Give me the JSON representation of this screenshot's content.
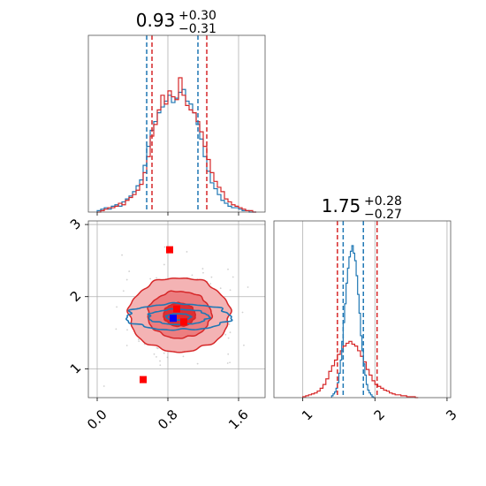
{
  "colors": {
    "red": "#d62728",
    "blue": "#1f77b4",
    "red_fill_light": "#f4b3b4",
    "red_fill_mid": "#ec7e80",
    "red_fill_dark": "#dd2f33",
    "marker_red": "#ff0000",
    "marker_blue": "#0000ff",
    "grid": "#b0b0b0"
  },
  "chart_data": [
    {
      "type": "histogram",
      "panel": "top-left",
      "title": {
        "value": "0.93",
        "sup": "+0.30",
        "sub": "−0.31"
      },
      "xlim": [
        -0.1,
        1.9
      ],
      "quantile_lines": {
        "blue": [
          0.56,
          1.14
        ],
        "red": [
          0.62,
          1.24
        ]
      },
      "bins": [
        0.0,
        0.04,
        0.08,
        0.12,
        0.16,
        0.2,
        0.24,
        0.28,
        0.32,
        0.36,
        0.4,
        0.44,
        0.48,
        0.52,
        0.56,
        0.6,
        0.64,
        0.68,
        0.72,
        0.76,
        0.8,
        0.84,
        0.88,
        0.92,
        0.96,
        1.0,
        1.04,
        1.08,
        1.12,
        1.16,
        1.2,
        1.24,
        1.28,
        1.32,
        1.36,
        1.4,
        1.44,
        1.48,
        1.52,
        1.56,
        1.6,
        1.64,
        1.68,
        1.72,
        1.76,
        1.8
      ],
      "series": [
        {
          "color": "blue",
          "values": [
            0.01,
            0.02,
            0.03,
            0.02,
            0.04,
            0.05,
            0.04,
            0.07,
            0.09,
            0.11,
            0.14,
            0.18,
            0.22,
            0.32,
            0.45,
            0.56,
            0.62,
            0.68,
            0.72,
            0.76,
            0.8,
            0.75,
            0.78,
            0.82,
            0.84,
            0.76,
            0.74,
            0.68,
            0.6,
            0.5,
            0.38,
            0.28,
            0.2,
            0.16,
            0.12,
            0.08,
            0.06,
            0.04,
            0.03,
            0.03,
            0.02,
            0.01,
            0.01,
            0.0,
            0.0
          ]
        },
        {
          "color": "red",
          "values": [
            0.0,
            0.01,
            0.02,
            0.03,
            0.03,
            0.04,
            0.06,
            0.05,
            0.08,
            0.1,
            0.12,
            0.15,
            0.19,
            0.27,
            0.38,
            0.52,
            0.6,
            0.7,
            0.8,
            0.74,
            0.83,
            0.79,
            0.77,
            0.92,
            0.8,
            0.73,
            0.7,
            0.68,
            0.62,
            0.55,
            0.45,
            0.36,
            0.27,
            0.21,
            0.17,
            0.14,
            0.09,
            0.07,
            0.05,
            0.04,
            0.03,
            0.02,
            0.01,
            0.01,
            0.0
          ]
        }
      ]
    },
    {
      "type": "contour",
      "panel": "bottom-left",
      "xlim": [
        -0.1,
        1.9
      ],
      "ylim": [
        0.6,
        3.05
      ],
      "xticks": [
        0.0,
        0.8,
        1.6
      ],
      "xticklabels": [
        "0.0",
        "0.8",
        "1.6"
      ],
      "yticks": [
        1,
        2,
        3
      ],
      "yticklabels": [
        "1",
        "2",
        "3"
      ],
      "grid": true,
      "red_contours": {
        "center": [
          0.93,
          1.75
        ],
        "sigma": [
          0.3,
          0.27
        ],
        "levels": [
          0.6,
          1.2,
          1.9
        ]
      },
      "blue_contours": {
        "center": [
          0.92,
          1.72
        ],
        "sigma": [
          0.31,
          0.095
        ],
        "levels": [
          0.45,
          1.1,
          1.9
        ]
      },
      "markers_red": [
        [
          0.82,
          2.65
        ],
        [
          0.52,
          0.85
        ],
        [
          0.9,
          1.83
        ],
        [
          0.98,
          1.65
        ]
      ],
      "markers_blue": [
        [
          0.86,
          1.7
        ]
      ]
    },
    {
      "type": "histogram",
      "panel": "bottom-right",
      "title": {
        "value": "1.75",
        "sup": "+0.28",
        "sub": "−0.27"
      },
      "xlim": [
        0.6,
        3.05
      ],
      "xticks": [
        1,
        2,
        3
      ],
      "xticklabels": [
        "1",
        "2",
        "3"
      ],
      "quantile_lines": {
        "blue": [
          1.56,
          1.84
        ],
        "red": [
          1.48,
          2.03
        ]
      },
      "series": [
        {
          "color": "red",
          "bin_start": 1.0,
          "bin_width": 0.04,
          "values": [
            0.01,
            0.02,
            0.03,
            0.04,
            0.05,
            0.07,
            0.1,
            0.14,
            0.2,
            0.28,
            0.34,
            0.4,
            0.46,
            0.5,
            0.55,
            0.58,
            0.6,
            0.57,
            0.55,
            0.5,
            0.44,
            0.38,
            0.3,
            0.24,
            0.18,
            0.14,
            0.12,
            0.1,
            0.08,
            0.07,
            0.05,
            0.04,
            0.03,
            0.03,
            0.02,
            0.02,
            0.01,
            0.01,
            0.01,
            0.0
          ]
        },
        {
          "color": "blue",
          "bin_start": 1.4,
          "bin_width": 0.02,
          "values": [
            0.02,
            0.04,
            0.06,
            0.1,
            0.16,
            0.26,
            0.4,
            0.6,
            0.8,
            1.0,
            1.22,
            1.38,
            1.5,
            1.56,
            1.62,
            1.54,
            1.46,
            1.3,
            1.1,
            0.9,
            0.66,
            0.5,
            0.36,
            0.24,
            0.14,
            0.08,
            0.05,
            0.03,
            0.01,
            0.0
          ]
        }
      ]
    }
  ]
}
